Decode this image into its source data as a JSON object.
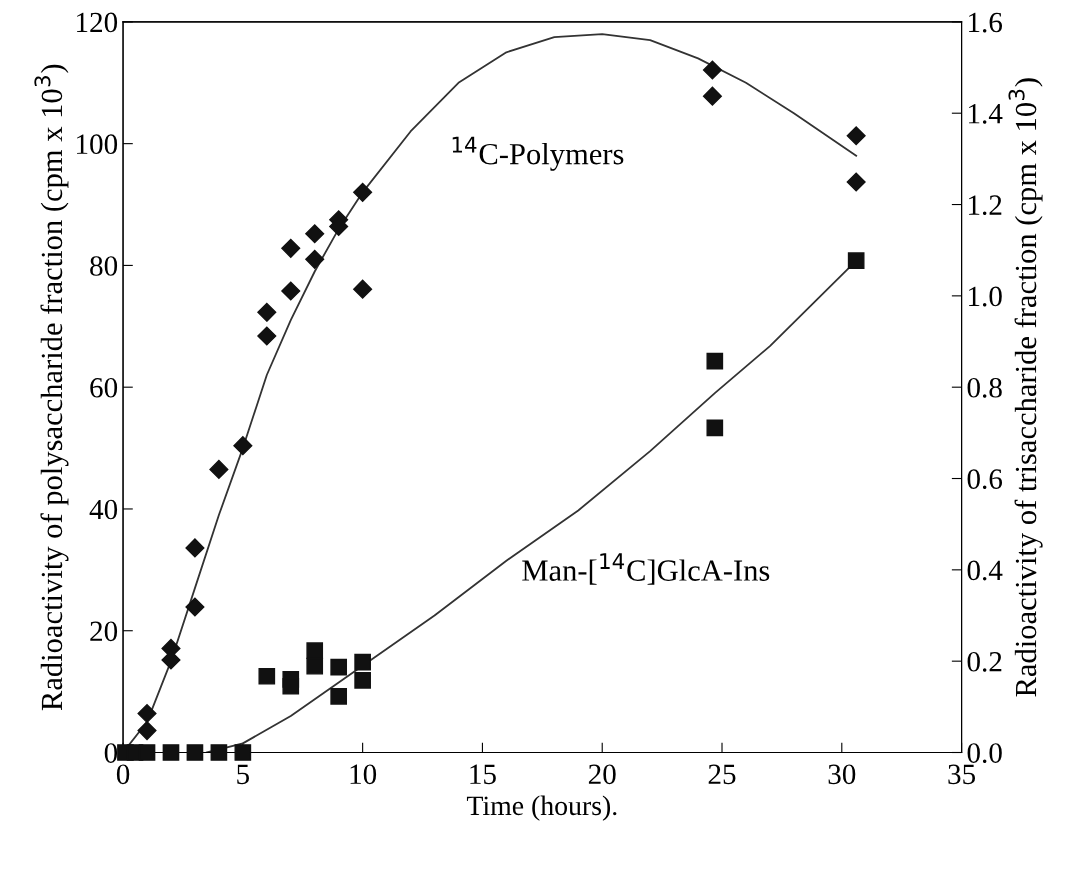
{
  "chart_data": {
    "type": "scatter",
    "xlabel": "Time (hours).",
    "ylabel": "Radioactivity of polysaccharide fraction (cpm x 10$^{3}$)",
    "y2label": "Radioactivity of trisaccharide fraction (cpm x 10$^{3}$)",
    "xlim": [
      0,
      35
    ],
    "xticks": [
      0,
      5,
      10,
      15,
      20,
      25,
      30,
      35
    ],
    "ylim": [
      0,
      120
    ],
    "yticks": [
      0,
      20,
      40,
      60,
      80,
      100,
      120
    ],
    "y2lim": [
      0,
      1.6
    ],
    "y2ticks": [
      {
        "value": 0,
        "label": "0.0"
      },
      {
        "value": 0.2,
        "label": "0.2"
      },
      {
        "value": 0.4,
        "label": "0.4"
      },
      {
        "value": 0.6,
        "label": "0.6"
      },
      {
        "value": 0.8,
        "label": "0.8"
      },
      {
        "value": 1.0,
        "label": "1.0"
      },
      {
        "value": 1.2,
        "label": "1.2"
      },
      {
        "value": 1.4,
        "label": "1.4"
      },
      {
        "value": 1.6,
        "label": "1.6"
      }
    ],
    "grid": false,
    "series": [
      {
        "type": "scatter",
        "marker": "diamond",
        "color": "#111111",
        "x": [
          1,
          1,
          2,
          2,
          3,
          3,
          4,
          5,
          6,
          6,
          7,
          7,
          8,
          8,
          9,
          9,
          10,
          10,
          24.6,
          24.6,
          30.6,
          30.6
        ],
        "values": [
          6.4,
          3.6,
          17.1,
          15.2,
          33.6,
          23.9,
          46.5,
          50.4,
          72.3,
          68.4,
          82.8,
          75.8,
          85.2,
          81.0,
          87.5,
          86.4,
          92.0,
          76.1,
          112.1,
          107.8,
          101.3,
          93.7
        ]
      },
      {
        "type": "line",
        "marker": "none",
        "color": "#333333",
        "x": [
          0,
          1,
          2,
          3,
          4,
          5,
          6,
          7,
          8,
          9,
          10,
          12,
          14,
          16,
          18,
          20,
          22,
          24,
          26,
          28,
          30.6
        ],
        "values": [
          0,
          5,
          15,
          27,
          39,
          50,
          62,
          71,
          79,
          86,
          92,
          102,
          110,
          115,
          117.5,
          118,
          117,
          114,
          110,
          105,
          98
        ]
      },
      {
        "type": "scatter",
        "marker": "square",
        "axis": "y2",
        "color": "#111111",
        "x": [
          0.1,
          0.5,
          1,
          2,
          3,
          4,
          5,
          6,
          7,
          7,
          8,
          8,
          9,
          9,
          10,
          10,
          24.7,
          24.7,
          30.6
        ],
        "values": [
          0,
          0,
          0,
          0,
          0,
          0,
          0,
          0.167,
          0.16,
          0.145,
          0.223,
          0.189,
          0.187,
          0.123,
          0.198,
          0.158,
          0.857,
          0.711,
          1.077
        ]
      },
      {
        "type": "line",
        "marker": "none",
        "axis": "y2",
        "color": "#333333",
        "x": [
          3.5,
          5,
          7,
          10,
          13,
          16,
          19,
          22,
          24.7,
          27,
          30.6
        ],
        "values": [
          0,
          0.02,
          0.08,
          0.19,
          0.3,
          0.42,
          0.53,
          0.66,
          0.787,
          0.89,
          1.077
        ]
      }
    ],
    "annotations": [
      "$^{14}$C-Polymers",
      "Man-[$^{14}$C]GlcA-Ins"
    ]
  }
}
